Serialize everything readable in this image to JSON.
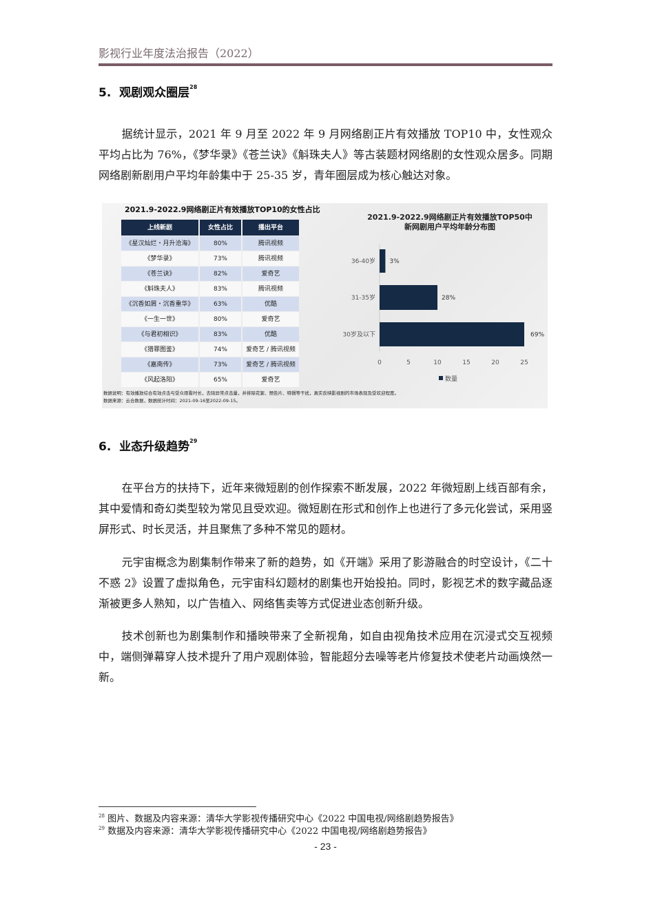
{
  "running_head": "影视行业年度法治报告（2022）",
  "section5": {
    "number": "5.",
    "title": "观剧观众圈层",
    "footnote_ref": "28"
  },
  "para5_1": "据统计显示，2021 年 9 月至 2022 年 9 月网络剧正片有效播放 TOP10 中，女性观众平均占比为 76%，《梦华录》《苍兰诀》《斛珠夫人》等古装题材网络剧的女性观众居多。同期网络剧新剧用户平均年龄集中于 25-35 岁，青年圈层成为核心触达对象。",
  "figure": {
    "table_title": "2021.9-2022.9网络剧正片有效播放TOP10的女性占比",
    "columns": [
      "上线新剧",
      "女性占比",
      "播出平台"
    ],
    "rows": [
      [
        "《星汉灿烂・月升沧海》",
        "80%",
        "腾讯视频"
      ],
      [
        "《梦华录》",
        "73%",
        "腾讯视频"
      ],
      [
        "《苍兰诀》",
        "82%",
        "爱奇艺"
      ],
      [
        "《斛珠夫人》",
        "83%",
        "腾讯视频"
      ],
      [
        "《沉香如屑・沉香重华》",
        "63%",
        "优酷"
      ],
      [
        "《一生一世》",
        "80%",
        "爱奇艺"
      ],
      [
        "《与君初相识》",
        "83%",
        "优酷"
      ],
      [
        "《猎罪图鉴》",
        "74%",
        "爱奇艺 / 腾讯视频"
      ],
      [
        "《嘉南传》",
        "73%",
        "爱奇艺 / 腾讯视频"
      ],
      [
        "《风起洛阳》",
        "65%",
        "爱奇艺"
      ]
    ],
    "note_1": "数据说明：有效播放综合有效点击与受众观看时长，去除异常点击量，并排除花絮、预告片、特辑等干扰，真实反映影视剧的市场表现及受欢迎程度。",
    "note_2": "数据来源：云合数据，数据统计时间：2021-09-16至2022-09-15。"
  },
  "chart_data": {
    "type": "bar",
    "orientation": "horizontal",
    "title": "2021.9-2022.9网络剧正片有效播放TOP50中\n新网剧用户平均年龄分布图",
    "title_lines": [
      "2021.9-2022.9网络剧正片有效播放TOP50中",
      "新网剧用户平均年龄分布图"
    ],
    "categories": [
      "36-40岁",
      "31-35岁",
      "30岁及以下"
    ],
    "series": [
      {
        "name": "数量",
        "values": [
          1,
          10,
          25
        ],
        "data_labels": [
          "3%",
          "28%",
          "69%"
        ]
      }
    ],
    "xlim": [
      0,
      25
    ],
    "xticks": [
      "0",
      "5",
      "10",
      "15",
      "20",
      "25"
    ],
    "grid": false,
    "legend": "bottom",
    "bar_color": "#142a45"
  },
  "section6": {
    "number": "6.",
    "title": "业态升级趋势",
    "footnote_ref": "29"
  },
  "para6_1": "在平台方的扶持下，近年来微短剧的创作探索不断发展，2022 年微短剧上线百部有余，其中爱情和奇幻类型较为常见且受欢迎。微短剧在形式和创作上也进行了多元化尝试，采用竖屏形式、时长灵活，并且聚焦了多种不常见的题材。",
  "para6_2": "元宇宙概念为剧集制作带来了新的趋势，如《开端》采用了影游融合的时空设计，《二十不惑 2》设置了虚拟角色，元宇宙科幻题材的剧集也开始投拍。同时，影视艺术的数字藏品逐渐被更多人熟知，以广告植入、网络售卖等方式促进业态创新升级。",
  "para6_3": "技术创新也为剧集制作和播映带来了全新视角，如自由视角技术应用在沉浸式交互视频中，端侧弹幕穿人技术提升了用户观剧体验，智能超分去噪等老片修复技术使老片动画焕然一新。",
  "footnotes": [
    {
      "ref": "28",
      "text": "图片、数据及内容来源：清华大学影视传播研究中心《2022 中国电视/网络剧趋势报告》"
    },
    {
      "ref": "29",
      "text": "数据及内容来源：清华大学影视传播研究中心《2022 中国电视/网络剧趋势报告》"
    }
  ],
  "page_number": "- 23 -"
}
